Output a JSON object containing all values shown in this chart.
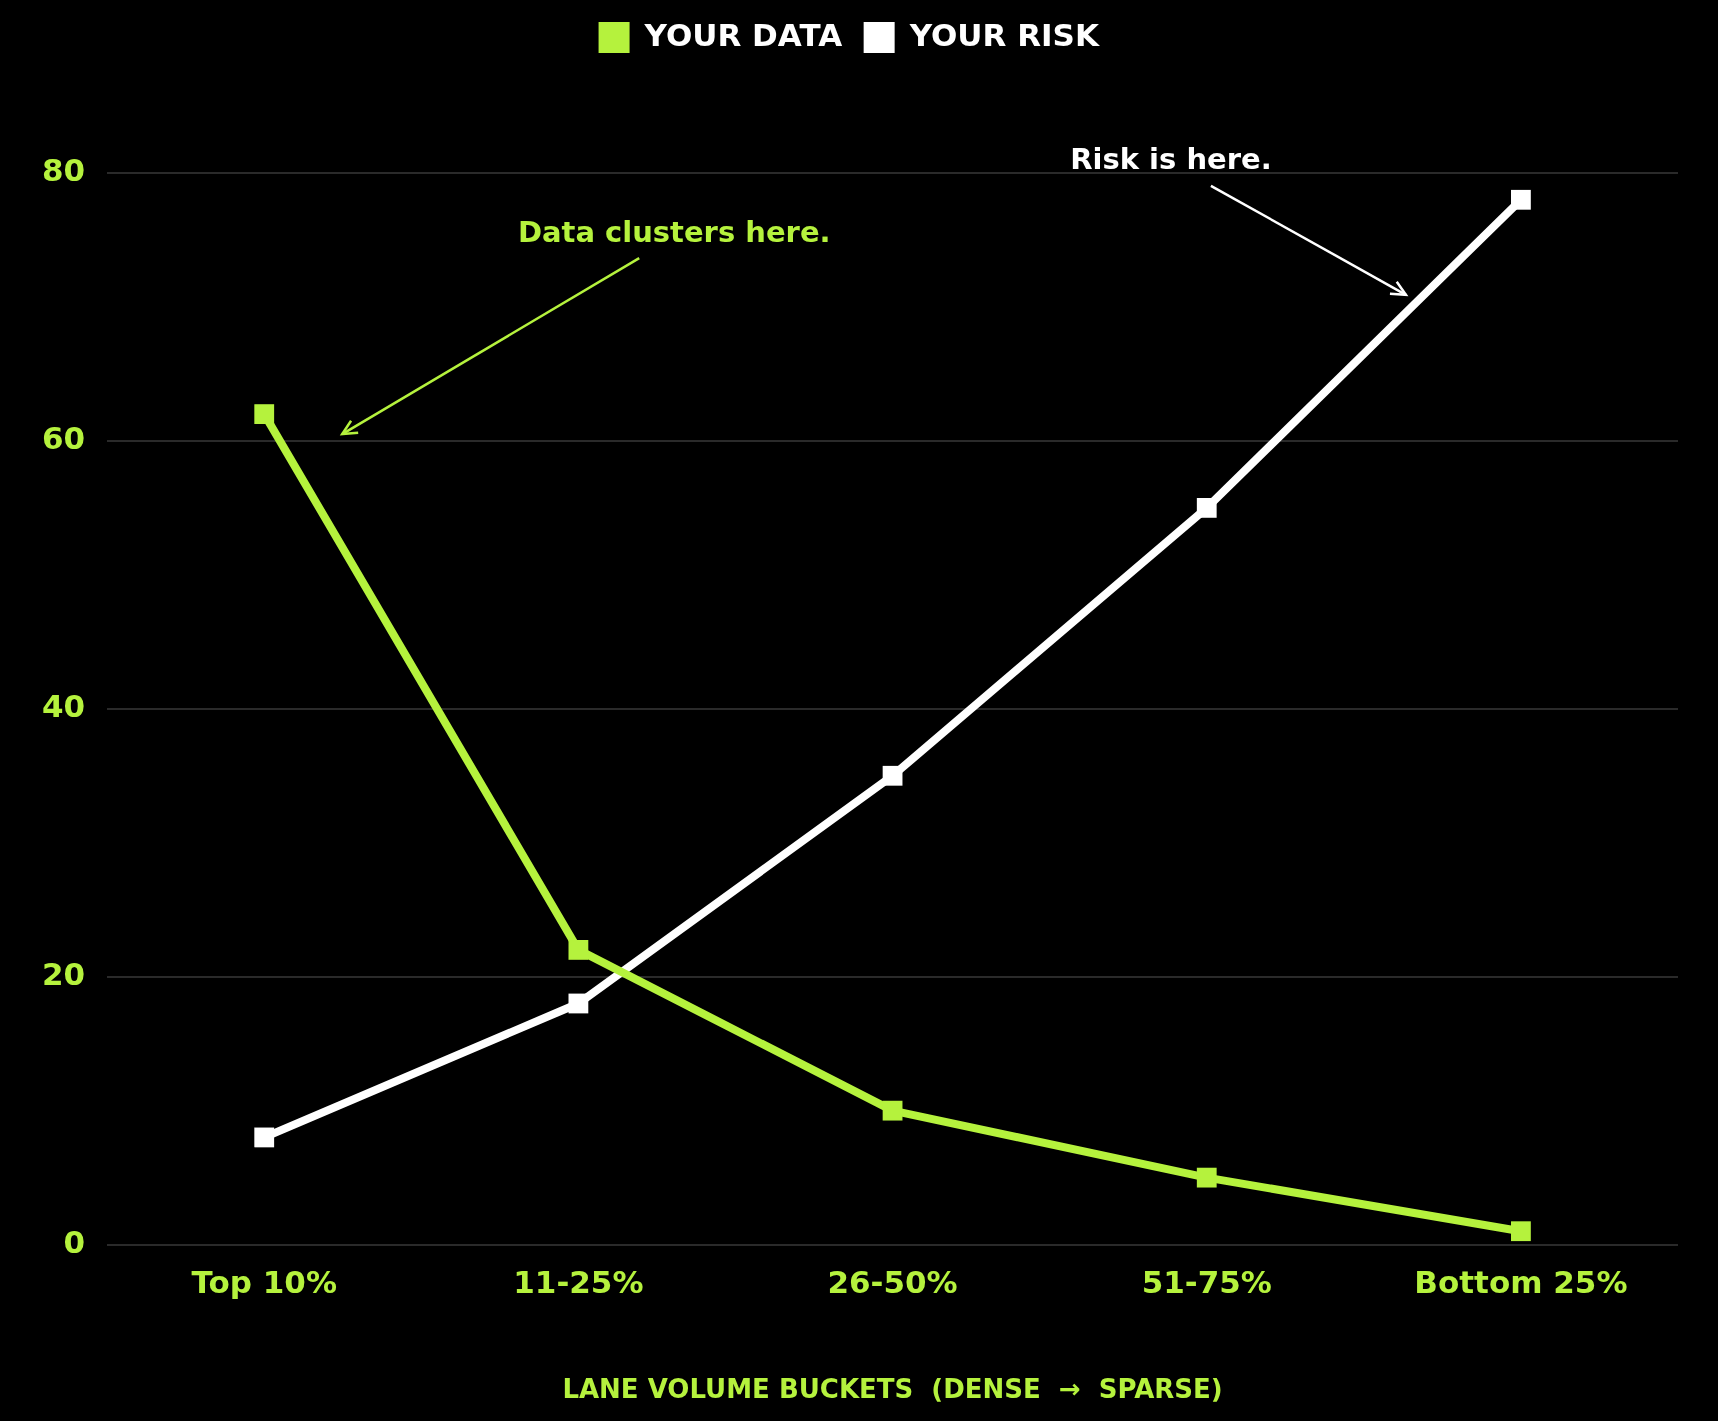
{
  "chart_data": {
    "type": "line",
    "categories": [
      "Top 10%",
      "11-25%",
      "26-50%",
      "51-75%",
      "Bottom 25%"
    ],
    "series": [
      {
        "name": "YOUR DATA",
        "color": "#b5f23d",
        "values": [
          62,
          22,
          10,
          5,
          1
        ]
      },
      {
        "name": "YOUR RISK",
        "color": "#ffffff",
        "values": [
          8,
          18,
          35,
          55,
          78
        ]
      }
    ],
    "xlabel": "LANE VOLUME BUCKETS  (DENSE  →  SPARSE)",
    "ylim": [
      0,
      80
    ],
    "yticks": [
      0,
      20,
      40,
      60,
      80
    ],
    "grid": "y",
    "legend": "top",
    "marker": "square",
    "line_style": "solid",
    "annotations": [
      "Data clusters here.",
      "Risk is here."
    ]
  }
}
